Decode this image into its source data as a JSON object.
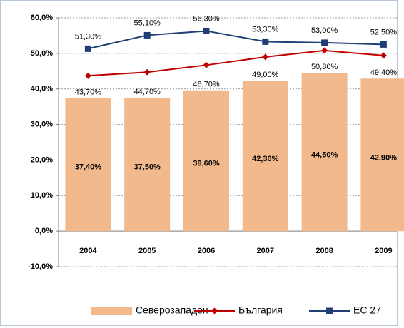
{
  "chart_data": {
    "type": "bar_line",
    "categories": [
      "2004",
      "2005",
      "2006",
      "2007",
      "2008",
      "2009"
    ],
    "series": [
      {
        "name": "Северозападен",
        "color": "#f2b98c",
        "type": "bar",
        "values": [
          37.4,
          37.5,
          39.6,
          42.3,
          44.5,
          42.9
        ],
        "value_labels": [
          "37,40%",
          "37,50%",
          "39,60%",
          "42,30%",
          "44,50%",
          "42,90%"
        ]
      },
      {
        "name": "България",
        "color": "#c00000",
        "type": "line",
        "marker": "diamond",
        "values": [
          43.7,
          44.7,
          46.7,
          49.0,
          50.8,
          49.4
        ],
        "value_labels": [
          "43,70%",
          "44,70%",
          "46,70%",
          "49,00%",
          "50,80%",
          "49,40%"
        ]
      },
      {
        "name": "ЕС 27",
        "color": "#1f3f74",
        "type": "line",
        "marker": "square",
        "values": [
          51.3,
          55.1,
          56.3,
          53.3,
          53.0,
          52.5
        ],
        "value_labels": [
          "51,30%",
          "55,10%",
          "56,30%",
          "53,30%",
          "53,00%",
          "52,50%"
        ]
      }
    ],
    "ylim": [
      -10,
      60
    ],
    "yticks": [
      {
        "value": -10,
        "label": "-10,0%"
      },
      {
        "value": 0,
        "label": "0,0%"
      },
      {
        "value": 10,
        "label": "10,0%"
      },
      {
        "value": 20,
        "label": "20,0%"
      },
      {
        "value": 30,
        "label": "30,0%"
      },
      {
        "value": 40,
        "label": "40,0%"
      },
      {
        "value": 50,
        "label": "50,0%"
      },
      {
        "value": 60,
        "label": "60,0%"
      }
    ],
    "grid": true,
    "legend": "bottom"
  }
}
